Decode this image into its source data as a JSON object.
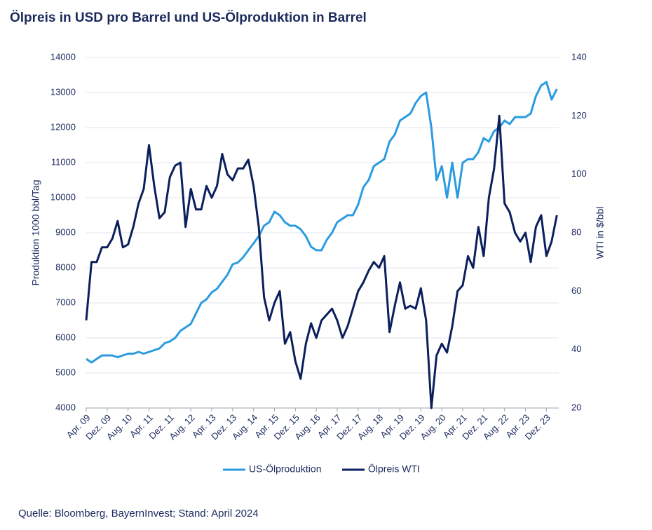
{
  "chart_data": {
    "type": "line",
    "title": "Ölpreis in USD pro Barrel und US-Ölproduktion in Barrel",
    "source": "Quelle: Bloomberg, BayernInvest; Stand: April 2024",
    "y_label": "Produktion 1000 bbl/Tag",
    "y2_label": "WTI in $/bbl",
    "categories": [
      "Apr. 09",
      null,
      null,
      null,
      "Dez. 09",
      null,
      null,
      null,
      "Aug. 10",
      null,
      null,
      null,
      "Apr. 11",
      null,
      null,
      null,
      "Dez. 11",
      null,
      null,
      null,
      "Aug. 12",
      null,
      null,
      null,
      "Apr. 13",
      null,
      null,
      null,
      "Dez. 13",
      null,
      null,
      null,
      "Aug. 14",
      null,
      null,
      null,
      "Apr. 15",
      null,
      null,
      null,
      "Dez. 15",
      null,
      null,
      null,
      "Aug. 16",
      null,
      null,
      null,
      "Apr. 17",
      null,
      null,
      null,
      "Dez. 17",
      null,
      null,
      null,
      "Aug. 18",
      null,
      null,
      null,
      "Apr. 19",
      null,
      null,
      null,
      "Dez. 19",
      null,
      null,
      null,
      "Aug. 20",
      null,
      null,
      null,
      "Apr. 21",
      null,
      null,
      null,
      "Dez. 21",
      null,
      null,
      null,
      "Aug. 22",
      null,
      null,
      null,
      "Apr. 23",
      null,
      null,
      null,
      "Dez. 23",
      null,
      null
    ],
    "series": [
      {
        "name": "US-Ölproduktion",
        "color": "#2b9be0",
        "values": [
          5400,
          5300,
          5400,
          5500,
          5500,
          5500,
          5450,
          5500,
          5550,
          5550,
          5600,
          5550,
          5600,
          5650,
          5700,
          5850,
          5900,
          6000,
          6200,
          6300,
          6400,
          6700,
          7000,
          7100,
          7300,
          7400,
          7600,
          7800,
          8100,
          8150,
          8300,
          8500,
          8700,
          8900,
          9200,
          9300,
          9600,
          9500,
          9300,
          9200,
          9200,
          9100,
          8900,
          8600,
          8500,
          8500,
          8800,
          9000,
          9300,
          9400,
          9500,
          9500,
          9800,
          10300,
          10500,
          10900,
          11000,
          11100,
          11600,
          11800,
          12200,
          12300,
          12400,
          12700,
          12900,
          13000,
          12000,
          10500,
          10900,
          10000,
          11000,
          10000,
          11000,
          11100,
          11100,
          11300,
          11700,
          11600,
          11900,
          12000,
          12200,
          12100,
          12300,
          12300,
          12300,
          12400,
          12900,
          13200,
          13300,
          12800,
          13100
        ]
      },
      {
        "name": "Ölpreis WTI",
        "color": "#0b1f5c",
        "axis": "y2",
        "values": [
          50,
          70,
          70,
          75,
          75,
          78,
          84,
          75,
          76,
          82,
          90,
          95,
          110,
          96,
          85,
          87,
          99,
          103,
          104,
          82,
          95,
          88,
          88,
          96,
          92,
          96,
          107,
          100,
          98,
          102,
          102,
          105,
          96,
          82,
          58,
          50,
          56,
          60,
          42,
          46,
          36,
          30,
          42,
          49,
          44,
          50,
          52,
          54,
          50,
          44,
          48,
          54,
          60,
          63,
          67,
          70,
          68,
          72,
          46,
          55,
          63,
          54,
          55,
          54,
          61,
          50,
          20,
          38,
          42,
          39,
          48,
          60,
          62,
          72,
          68,
          82,
          72,
          92,
          102,
          120,
          90,
          87,
          80,
          77,
          80,
          70,
          82,
          86,
          72,
          77,
          86
        ]
      }
    ],
    "ylim": [
      4000,
      14000
    ],
    "yticks": [
      4000,
      5000,
      6000,
      7000,
      8000,
      9000,
      10000,
      11000,
      12000,
      13000,
      14000
    ],
    "y2lim": [
      20,
      140
    ],
    "y2ticks": [
      20,
      40,
      60,
      80,
      100,
      120,
      140
    ],
    "grid": true
  }
}
